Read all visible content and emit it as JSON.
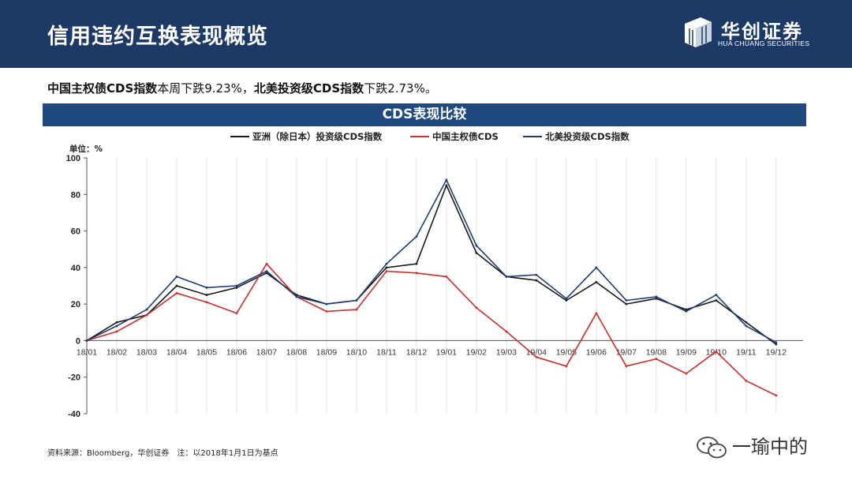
{
  "header": {
    "title": "信用违约互换表现概览"
  },
  "logo": {
    "name_cn": "华创证券",
    "name_en": "HUA CHUANG SECURITIES"
  },
  "summary": {
    "part1_bold": "中国主权债CDS指数",
    "part1_text": "本周下跌9.23%，",
    "part2_bold": "北美投资级CDS指数",
    "part2_text": "下跌2.73%。"
  },
  "banner": {
    "title": "CDS表现比较"
  },
  "chart_data": {
    "type": "line",
    "title": "CDS表现比较",
    "unit_label": "单位：%",
    "ylim": [
      -40,
      100
    ],
    "yticks": [
      100,
      80,
      60,
      40,
      20,
      0,
      -20,
      -40
    ],
    "x_labels": [
      "18/01",
      "18/02",
      "18/03",
      "18/04",
      "18/05",
      "18/06",
      "18/07",
      "18/08",
      "18/09",
      "18/10",
      "18/11",
      "18/12",
      "19/01",
      "19/02",
      "19/03",
      "19/04",
      "19/05",
      "19/06",
      "19/07",
      "19/08",
      "19/09",
      "19/10",
      "19/11",
      "19/12"
    ],
    "x_values": [
      "2018-01",
      "2018-02",
      "2018-03",
      "2018-04",
      "2018-05",
      "2018-06",
      "2018-07",
      "2018-08",
      "2018-09",
      "2018-10",
      "2018-11",
      "2018-12",
      "2019-01",
      "2019-02",
      "2019-03",
      "2019-04",
      "2019-05",
      "2019-06",
      "2019-07",
      "2019-08",
      "2019-09",
      "2019-10",
      "2019-11",
      "2019-12"
    ],
    "grid": "vertical",
    "legend": "top",
    "series": [
      {
        "name": "亚洲（除日本）投资级CDS指数",
        "color": "#1a1a1a",
        "values": [
          0,
          10,
          14,
          30,
          25,
          29,
          37,
          25,
          20,
          22,
          40,
          42,
          85,
          48,
          35,
          33,
          22,
          32,
          20,
          23,
          17,
          22,
          10,
          -2
        ]
      },
      {
        "name": "中国主权债CDS",
        "color": "#d52b2b",
        "values": [
          0,
          5,
          14,
          26,
          21,
          15,
          42,
          24,
          16,
          17,
          38,
          37,
          35,
          18,
          5,
          -9,
          -14,
          15,
          -14,
          -10,
          -18,
          -6,
          -22,
          -30
        ]
      },
      {
        "name": "北美投资级CDS指数",
        "color": "#1f3d73",
        "values": [
          0,
          8,
          17,
          35,
          29,
          30,
          38,
          24,
          20,
          22,
          42,
          57,
          88,
          52,
          35,
          36,
          23,
          40,
          22,
          24,
          16,
          25,
          8,
          -1
        ]
      }
    ]
  },
  "source": {
    "text": "资料来源：Bloomberg，华创证券　注：以2018年1月1日为基点"
  },
  "watermark": {
    "text": "一瑜中的"
  }
}
